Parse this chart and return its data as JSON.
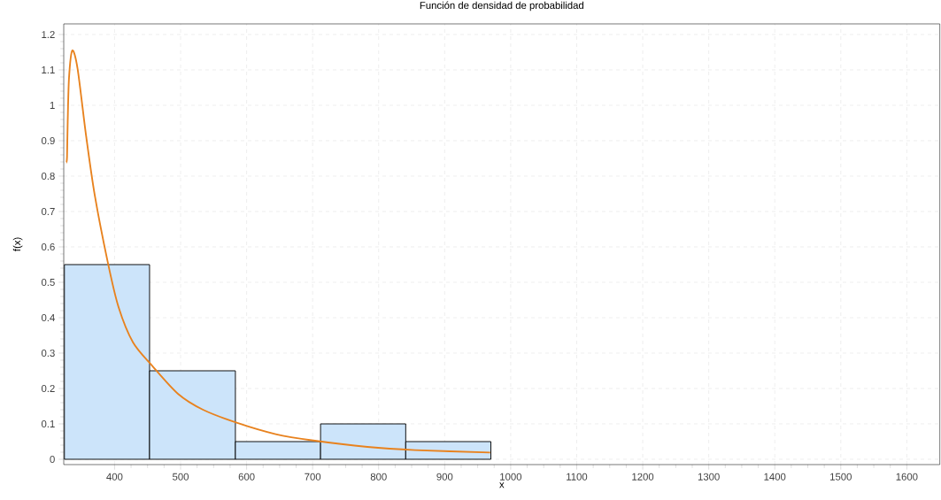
{
  "chart_data": {
    "type": "histogram",
    "title": "Función de densidad de probabilidad",
    "xlabel": "x",
    "ylabel": "f(x)",
    "series": [
      {
        "bins": [
          324,
          453,
          583,
          712,
          841,
          970
        ],
        "values": [
          0.55,
          0.25,
          0.05,
          0.1,
          0.05
        ],
        "color": "#cce4fa"
      },
      {
        "type": "line",
        "x": [
          327,
          328,
          329,
          331,
          336,
          344,
          357,
          370,
          390,
          406,
          428,
          457,
          496,
          534,
          587,
          644,
          701,
          783,
          855,
          969
        ],
        "values": [
          0.838,
          0.854,
          0.953,
          1.078,
          1.155,
          1.103,
          0.912,
          0.746,
          0.554,
          0.43,
          0.33,
          0.264,
          0.185,
          0.14,
          0.102,
          0.071,
          0.053,
          0.035,
          0.026,
          0.019
        ],
        "color": "#e8821e"
      }
    ],
    "xlim": [
      323,
      1650
    ],
    "ylim": [
      -0.015,
      1.23
    ],
    "xticks": [
      400,
      500,
      600,
      700,
      800,
      900,
      1000,
      1100,
      1200,
      1300,
      1400,
      1500,
      1600
    ],
    "yticks": [
      0,
      0.1,
      0.2,
      0.3,
      0.4,
      0.5,
      0.6,
      0.7,
      0.8,
      0.9,
      1,
      1.1,
      1.2
    ],
    "grid": true
  }
}
